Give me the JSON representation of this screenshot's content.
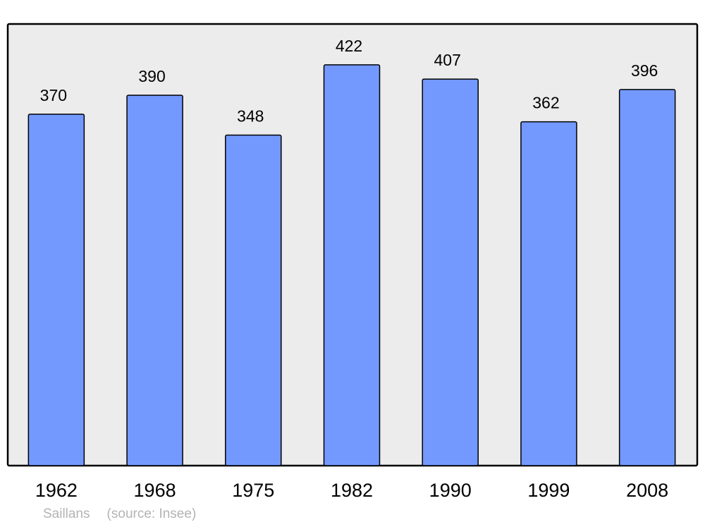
{
  "chart_data": {
    "type": "bar",
    "categories": [
      "1962",
      "1968",
      "1975",
      "1982",
      "1990",
      "1999",
      "2008"
    ],
    "values": [
      370,
      390,
      348,
      422,
      407,
      362,
      396
    ],
    "data_labels": [
      "370",
      "390",
      "348",
      "422",
      "407",
      "362",
      "396"
    ],
    "title": "",
    "xlabel": "",
    "ylabel": "",
    "ylim": [
      0,
      465
    ],
    "grid": false,
    "legend": "none",
    "colors": {
      "bar": "#7399ff",
      "plot_background": "#ececec",
      "frame": "#000000",
      "footer_text": "#b3b3b3"
    }
  },
  "footer": {
    "place": "Saillans",
    "source": "(source: Insee)"
  }
}
